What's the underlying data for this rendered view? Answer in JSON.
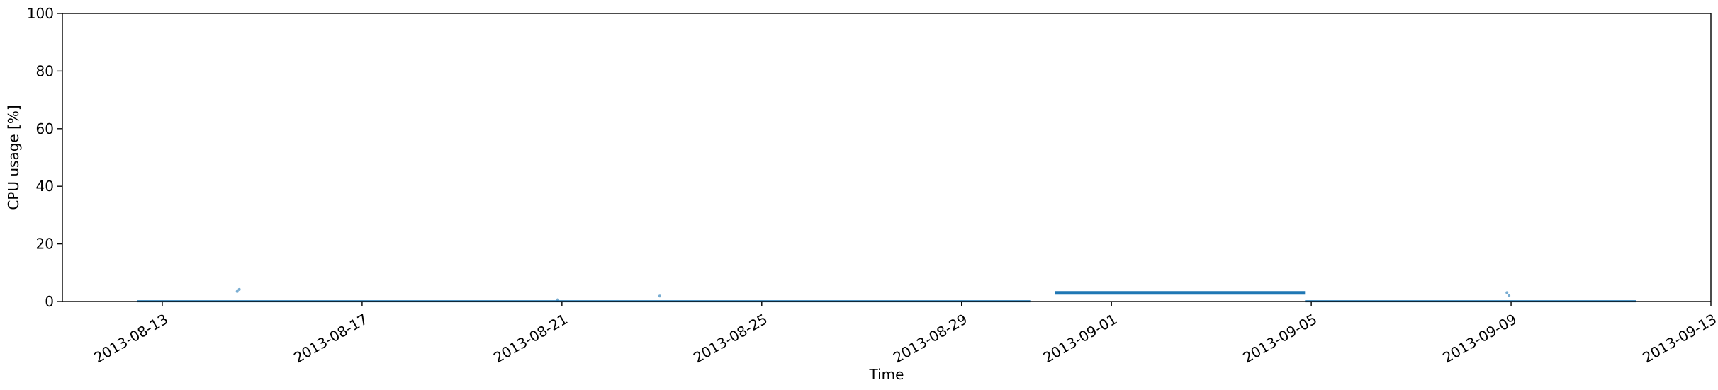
{
  "chart_data": {
    "type": "scatter",
    "title": "",
    "xlabel": "Time",
    "ylabel": "CPU usage [%]",
    "ylim": [
      0,
      100
    ],
    "xlim": [
      "2013-08-11",
      "2013-09-13"
    ],
    "y_ticks": [
      0,
      20,
      40,
      60,
      80,
      100
    ],
    "y_tick_labels": [
      "0",
      "20",
      "40",
      "60",
      "80",
      "100"
    ],
    "x_ticks": [
      "2013-08-13",
      "2013-08-17",
      "2013-08-21",
      "2013-08-25",
      "2013-08-29",
      "2013-09-01",
      "2013-09-05",
      "2013-09-09",
      "2013-09-13"
    ],
    "x_tick_labels": [
      "2013-08-13",
      "2013-08-17",
      "2013-08-21",
      "2013-08-25",
      "2013-08-29",
      "2013-09-01",
      "2013-09-05",
      "2013-09-09",
      "2013-09-13"
    ],
    "grid": false,
    "color": "#1f77b4",
    "series": [
      {
        "segments": [
          {
            "x_start": "2013-08-12 12:00",
            "x_end": "2013-08-30 09:00",
            "y": 0.1
          },
          {
            "x_start": "2013-08-30 21:00",
            "x_end": "2013-09-04 21:00",
            "y": 3.0
          },
          {
            "x_start": "2013-09-04 21:00",
            "x_end": "2013-09-11 12:00",
            "y": 0.1
          }
        ],
        "outliers": [
          {
            "x": "2013-08-14 12:00",
            "y": 3.5
          },
          {
            "x": "2013-08-14 13:00",
            "y": 4.2
          },
          {
            "x": "2013-08-20 22:00",
            "y": 0.6
          },
          {
            "x": "2013-08-22 23:00",
            "y": 1.9
          },
          {
            "x": "2013-09-08 22:00",
            "y": 3.1
          },
          {
            "x": "2013-09-08 23:00",
            "y": 2.0
          }
        ]
      }
    ]
  }
}
